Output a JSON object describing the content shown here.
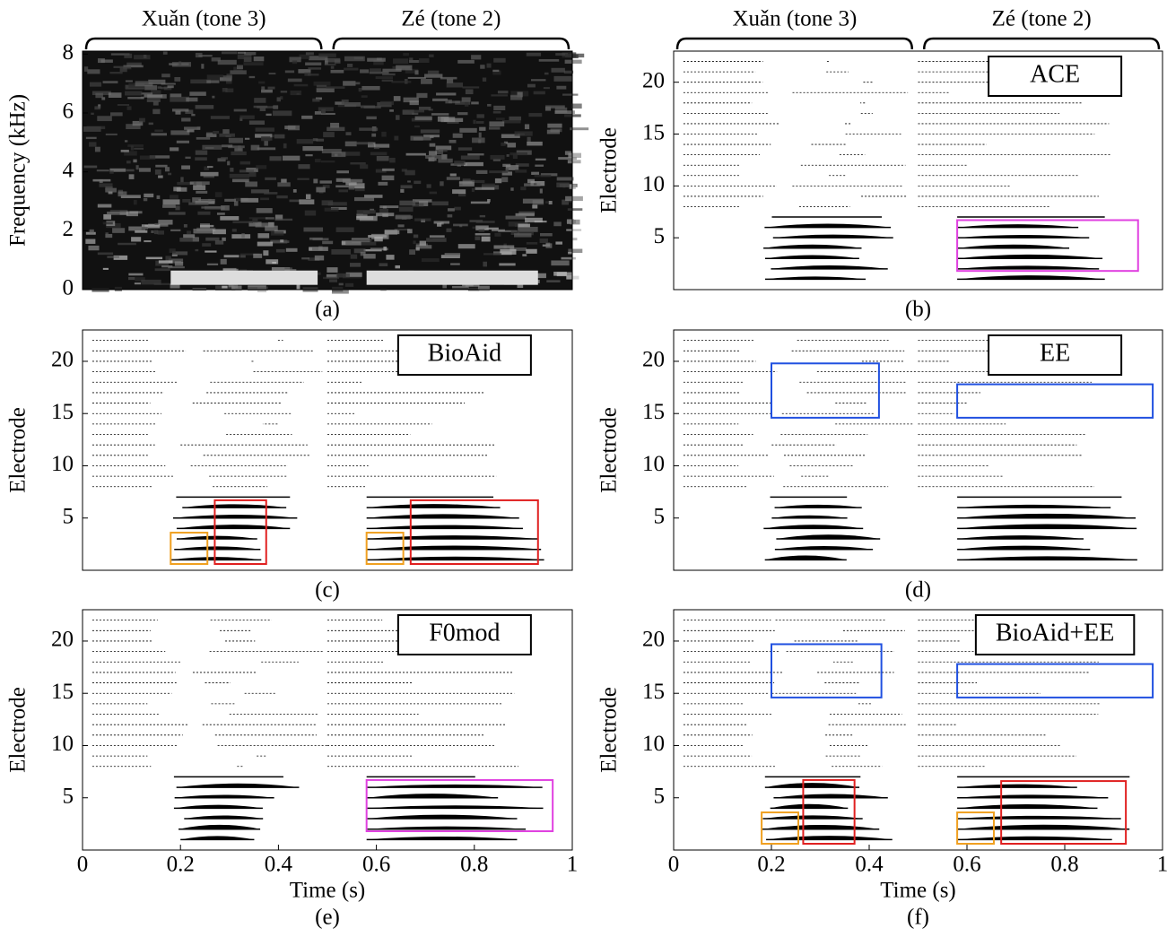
{
  "chart_data": [
    {
      "type": "spectrogram",
      "caption": "(a)",
      "y_label": "Frequency (kHz)",
      "xlim": [
        0,
        1
      ],
      "ylim": [
        0,
        8.1
      ],
      "yticks": [
        0,
        2,
        4,
        6,
        8
      ],
      "segments": [
        {
          "label": "Xuǎn (tone 3)",
          "start": 0,
          "end": 0.495
        },
        {
          "label": "Zé (tone 2)",
          "start": 0.505,
          "end": 1
        }
      ]
    },
    {
      "type": "electrodogram",
      "caption": "(b)",
      "label": "ACE",
      "y_label": "Electrode",
      "xlim": [
        0,
        1
      ],
      "ylim": [
        0,
        23
      ],
      "yticks": [
        5,
        10,
        15,
        20
      ],
      "segments": [
        {
          "label": "Xuǎn (tone 3)",
          "start": 0,
          "end": 0.495
        },
        {
          "label": "Zé (tone 2)",
          "start": 0.505,
          "end": 1
        }
      ],
      "boxes": [
        {
          "color": "#e040e0",
          "x": [
            0.58,
            0.95
          ],
          "y": [
            1.8,
            6.7
          ]
        }
      ]
    },
    {
      "type": "electrodogram",
      "caption": "(c)",
      "label": "BioAid",
      "y_label": "Electrode",
      "xlim": [
        0,
        1
      ],
      "ylim": [
        0,
        23
      ],
      "yticks": [
        5,
        10,
        15,
        20
      ],
      "boxes": [
        {
          "color": "#f0a020",
          "x": [
            0.18,
            0.255
          ],
          "y": [
            0.6,
            3.6
          ]
        },
        {
          "color": "#e02020",
          "x": [
            0.27,
            0.375
          ],
          "y": [
            0.6,
            6.7
          ]
        },
        {
          "color": "#f0a020",
          "x": [
            0.58,
            0.655
          ],
          "y": [
            0.6,
            3.6
          ]
        },
        {
          "color": "#e02020",
          "x": [
            0.67,
            0.93
          ],
          "y": [
            0.6,
            6.7
          ]
        }
      ]
    },
    {
      "type": "electrodogram",
      "caption": "(d)",
      "label": "EE",
      "y_label": "Electrode",
      "xlim": [
        0,
        1
      ],
      "ylim": [
        0,
        23
      ],
      "yticks": [
        5,
        10,
        15,
        20
      ],
      "boxes": [
        {
          "color": "#2050e0",
          "x": [
            0.2,
            0.42
          ],
          "y": [
            14.6,
            19.8
          ]
        },
        {
          "color": "#2050e0",
          "x": [
            0.58,
            0.98
          ],
          "y": [
            14.6,
            17.8
          ]
        }
      ]
    },
    {
      "type": "electrodogram",
      "caption": "(e)",
      "label": "F0mod",
      "y_label": "Electrode",
      "x_label": "Time (s)",
      "xlim": [
        0,
        1
      ],
      "ylim": [
        0,
        23
      ],
      "yticks": [
        5,
        10,
        15,
        20
      ],
      "xticks": [
        0,
        0.2,
        0.4,
        0.6,
        0.8,
        1
      ],
      "boxes": [
        {
          "color": "#e040e0",
          "x": [
            0.58,
            0.96
          ],
          "y": [
            1.8,
            6.7
          ]
        }
      ]
    },
    {
      "type": "electrodogram",
      "caption": "(f)",
      "label": "BioAid+EE",
      "y_label": "Electrode",
      "x_label": "Time (s)",
      "xlim": [
        0,
        1
      ],
      "ylim": [
        0,
        23
      ],
      "yticks": [
        5,
        10,
        15,
        20
      ],
      "xticks": [
        0,
        0.2,
        0.4,
        0.6,
        0.8,
        1
      ],
      "boxes": [
        {
          "color": "#2050e0",
          "x": [
            0.2,
            0.425
          ],
          "y": [
            14.6,
            19.7
          ]
        },
        {
          "color": "#2050e0",
          "x": [
            0.58,
            0.98
          ],
          "y": [
            14.6,
            17.8
          ]
        },
        {
          "color": "#f0a020",
          "x": [
            0.18,
            0.255
          ],
          "y": [
            0.6,
            3.6
          ]
        },
        {
          "color": "#e02020",
          "x": [
            0.265,
            0.37
          ],
          "y": [
            0.6,
            6.7
          ]
        },
        {
          "color": "#f0a020",
          "x": [
            0.58,
            0.655
          ],
          "y": [
            0.6,
            3.6
          ]
        },
        {
          "color": "#e02020",
          "x": [
            0.67,
            0.925
          ],
          "y": [
            0.6,
            6.6
          ]
        }
      ]
    }
  ]
}
